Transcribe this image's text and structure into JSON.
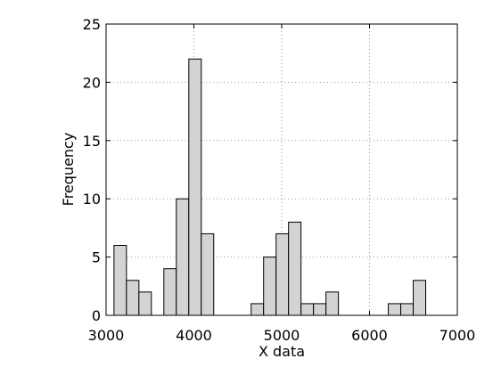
{
  "chart_data": {
    "type": "histogram",
    "xlabel": "X data",
    "ylabel": "Frequency",
    "bins": [
      3090,
      3232,
      3374,
      3516,
      3658,
      3800,
      3942,
      4084,
      4226,
      4368,
      4510,
      4652,
      4794,
      4936,
      5078,
      5220,
      5362,
      5504,
      5646,
      5788,
      5930,
      6072,
      6214,
      6356,
      6498,
      6640
    ],
    "values": [
      6,
      3,
      2,
      0,
      4,
      10,
      22,
      7,
      0,
      0,
      0,
      1,
      5,
      7,
      8,
      1,
      1,
      2,
      0,
      0,
      0,
      0,
      1,
      1,
      3
    ],
    "color": "#d3d3d3",
    "xlim": [
      3000,
      7000
    ],
    "xticks": [
      3000,
      4000,
      5000,
      6000,
      7000
    ],
    "ylim": [
      0,
      25
    ],
    "yticks": [
      0,
      5,
      10,
      15,
      20,
      25
    ],
    "grid": true
  }
}
